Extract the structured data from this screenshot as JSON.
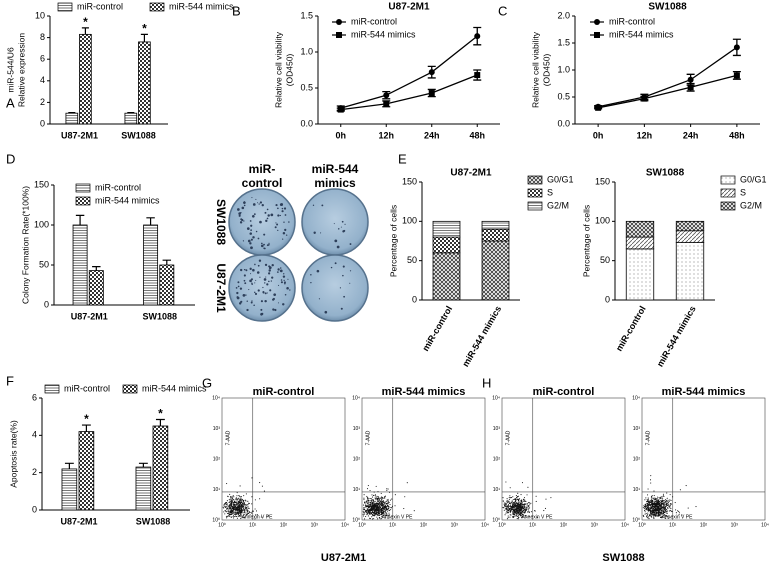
{
  "chart_data": [
    {
      "type": "bar",
      "panel": "A",
      "ylabel": [
        "miR-544/U6",
        "Relative expression"
      ],
      "categories": [
        "U87-2M1",
        "SW1088"
      ],
      "ylim": [
        0,
        10
      ],
      "yticks": [
        0,
        2,
        4,
        6,
        8,
        10
      ],
      "legend": "top",
      "series": [
        {
          "name": "miR-control",
          "color": "#333333",
          "pattern": "lines",
          "values": [
            1.0,
            1.0
          ],
          "errors": [
            0.06,
            0.06
          ]
        },
        {
          "name": "miR-544 mimics",
          "color": "#333333",
          "pattern": "checker",
          "values": [
            8.3,
            7.6
          ],
          "errors": [
            0.6,
            0.7
          ],
          "significance": [
            "*",
            "*"
          ]
        }
      ]
    },
    {
      "type": "line",
      "panel": "B",
      "title": "U87-2M1",
      "ylabel": [
        "Relative cell viability",
        "(OD450)"
      ],
      "categories": [
        "0h",
        "12h",
        "24h",
        "48h"
      ],
      "ylim": [
        0,
        1.5
      ],
      "yticks": [
        {
          "value": 0,
          "label": "0.0"
        },
        0.5,
        {
          "value": 1,
          "label": "1.0"
        },
        1.5
      ],
      "legend": "upper left",
      "series": [
        {
          "name": "miR-control",
          "color": "#000000",
          "marker": "circle",
          "values": [
            0.22,
            0.4,
            0.72,
            1.22
          ],
          "errors": [
            0.03,
            0.05,
            0.08,
            0.12
          ]
        },
        {
          "name": "miR-544 mimics",
          "color": "#000000",
          "marker": "square",
          "values": [
            0.2,
            0.28,
            0.43,
            0.68
          ],
          "errors": [
            0.02,
            0.04,
            0.05,
            0.07
          ]
        }
      ]
    },
    {
      "type": "line",
      "panel": "C",
      "title": "SW1088",
      "ylabel": [
        "Relative cell viability",
        "(OD450)"
      ],
      "categories": [
        "0h",
        "12h",
        "24h",
        "48h"
      ],
      "ylim": [
        0,
        2
      ],
      "yticks": [
        {
          "value": 0,
          "label": "0.0"
        },
        0.5,
        {
          "value": 1,
          "label": "1.0"
        },
        1.5,
        {
          "value": 2,
          "label": "2.0"
        }
      ],
      "legend": "upper left",
      "series": [
        {
          "name": "miR-control",
          "color": "#000000",
          "marker": "circle",
          "values": [
            0.32,
            0.5,
            0.82,
            1.42
          ],
          "errors": [
            0.02,
            0.05,
            0.1,
            0.15
          ]
        },
        {
          "name": "miR-544 mimics",
          "color": "#000000",
          "marker": "square",
          "values": [
            0.3,
            0.47,
            0.68,
            0.9
          ],
          "errors": [
            0.02,
            0.04,
            0.07,
            0.07
          ]
        }
      ]
    },
    {
      "type": "bar",
      "panel": "D",
      "ylabel": [
        "Colony Formation Rate(*100%)"
      ],
      "categories": [
        "U87-2M1",
        "SW1088"
      ],
      "ylim": [
        0,
        150
      ],
      "yticks": [
        0,
        50,
        100,
        150
      ],
      "legend": "upper left",
      "series": [
        {
          "name": "miR-control",
          "color": "#333333",
          "pattern": "lines",
          "values": [
            100,
            100
          ],
          "errors": [
            12,
            9
          ]
        },
        {
          "name": "miR-544 mimics",
          "color": "#333333",
          "pattern": "checker",
          "values": [
            43,
            50
          ],
          "errors": [
            5,
            6
          ]
        }
      ]
    },
    {
      "type": "stacked_bar",
      "panel": "E",
      "title": "U87-2M1",
      "ylabel": [
        "Percentage of cells"
      ],
      "categories": [
        "miR-control",
        "miR-544 mimics"
      ],
      "ylim": [
        0,
        150
      ],
      "yticks": [
        0,
        50,
        100,
        150
      ],
      "legend": "right",
      "series": [
        {
          "name": "G0/G1",
          "color": "#333333",
          "pattern": "crosshatch",
          "values": [
            60,
            75
          ]
        },
        {
          "name": "S",
          "color": "#333333",
          "pattern": "checker",
          "values": [
            20,
            15
          ]
        },
        {
          "name": "G2/M",
          "color": "#333333",
          "pattern": "lines",
          "values": [
            20,
            10
          ]
        }
      ]
    },
    {
      "type": "stacked_bar",
      "title": "SW1088",
      "ylabel": [
        "Percentage of cells"
      ],
      "categories": [
        "miR-control",
        "miR-544 mimics"
      ],
      "ylim": [
        0,
        150
      ],
      "yticks": [
        0,
        50,
        100,
        150
      ],
      "legend": "right",
      "series": [
        {
          "name": "G0/G1",
          "color": "#333333",
          "pattern": "dots",
          "values": [
            65,
            73
          ]
        },
        {
          "name": "S",
          "color": "#333333",
          "pattern": "diagonal",
          "values": [
            15,
            15
          ]
        },
        {
          "name": "G2/M",
          "color": "#333333",
          "pattern": "crosshatch",
          "values": [
            20,
            12
          ]
        }
      ]
    },
    {
      "type": "bar",
      "panel": "F",
      "ylabel": [
        "Apoptosis rate(%)"
      ],
      "categories": [
        "U87-2M1",
        "SW1088"
      ],
      "ylim": [
        0,
        6
      ],
      "yticks": [
        0,
        2,
        4,
        6
      ],
      "legend": "top",
      "series": [
        {
          "name": "miR-control",
          "color": "#333333",
          "pattern": "lines",
          "values": [
            2.2,
            2.3
          ],
          "errors": [
            0.3,
            0.2
          ]
        },
        {
          "name": "miR-544 mimics",
          "color": "#333333",
          "pattern": "checker",
          "values": [
            4.2,
            4.5
          ],
          "errors": [
            0.35,
            0.35
          ],
          "significance": [
            "*",
            "*"
          ]
        }
      ]
    }
  ],
  "colony_images": {
    "columns": [
      [
        "miR-",
        "control"
      ],
      [
        "miR-544",
        "mimics"
      ]
    ],
    "rows": [
      "SW1088",
      "U87-2M1"
    ]
  },
  "flow_cytometry": [
    {
      "panel": "G",
      "cell_line": "U87-2M1",
      "plots": [
        "miR-control",
        "miR-544 mimics"
      ]
    },
    {
      "panel": "H",
      "cell_line": "SW1088",
      "plots": [
        "miR-control",
        "miR-544 mimics"
      ]
    }
  ],
  "flow_axes": {
    "x_label": "Annexin V PE",
    "y_label": "7-AAD",
    "ticks": [
      "10⁰",
      "10¹",
      "10²",
      "10³",
      "10⁴"
    ]
  }
}
